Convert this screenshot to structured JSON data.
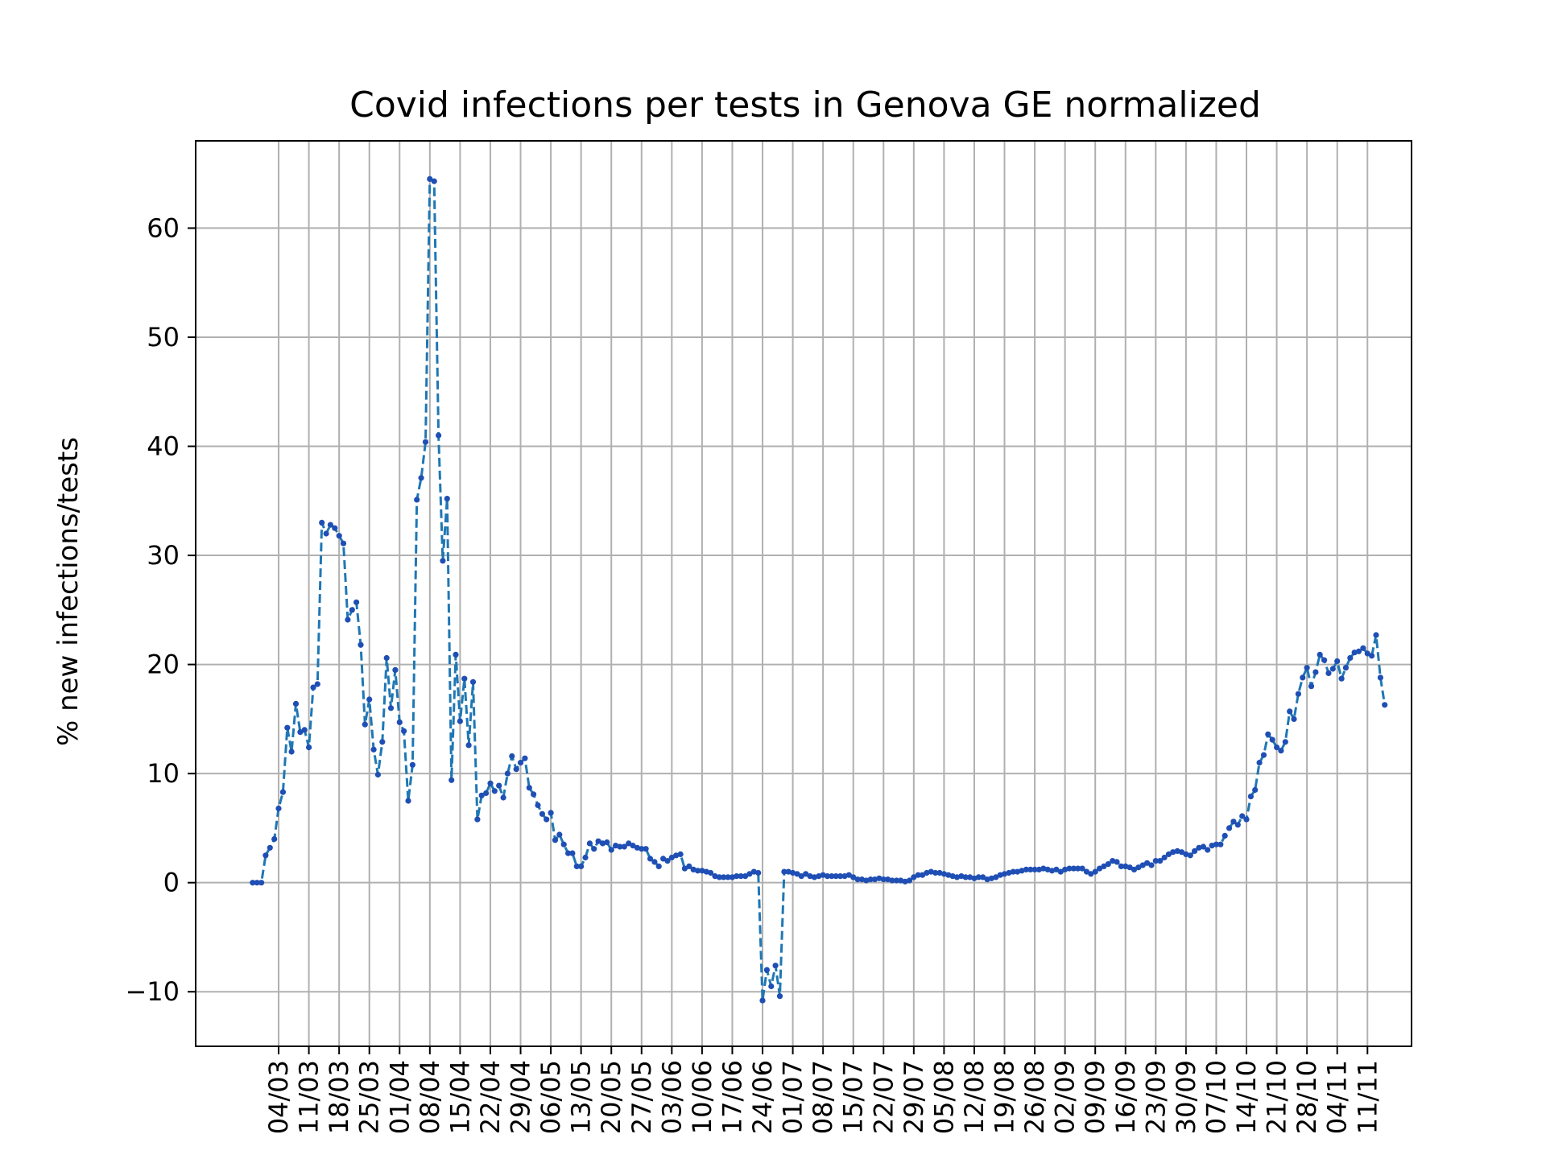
{
  "chart_data": {
    "type": "line",
    "title": "Covid infections per tests in Genova GE normalized",
    "xlabel": "",
    "ylabel": "% new infections/tests",
    "x_tick_labels": [
      "04/03",
      "11/03",
      "18/03",
      "25/03",
      "01/04",
      "08/04",
      "15/04",
      "22/04",
      "29/04",
      "06/05",
      "13/05",
      "20/05",
      "27/05",
      "03/06",
      "10/06",
      "17/06",
      "24/06",
      "01/07",
      "08/07",
      "15/07",
      "22/07",
      "29/07",
      "05/08",
      "12/08",
      "19/08",
      "26/08",
      "02/09",
      "09/09",
      "16/09",
      "23/09",
      "30/09",
      "07/10",
      "14/10",
      "21/10",
      "28/10",
      "04/11",
      "11/11"
    ],
    "y_ticks": [
      -10,
      0,
      10,
      20,
      30,
      40,
      50,
      60
    ],
    "y_tick_labels": [
      "−10",
      "0",
      "10",
      "20",
      "30",
      "40",
      "50",
      "60"
    ],
    "ylim": [
      -15,
      68
    ],
    "xlim_days": [
      -19.2,
      262.2
    ],
    "grid": true,
    "legend": "none",
    "colors": {
      "line": "#1f77b4",
      "marker": "#1f4fb4",
      "grid": "#b0b0b0"
    },
    "series": [
      {
        "line_style": "dashed",
        "marker": "dot",
        "points": [
          [
            -6,
            0.0
          ],
          [
            -5,
            0.0
          ],
          [
            -4,
            0.0
          ],
          [
            -3,
            2.5
          ],
          [
            -2,
            3.2
          ],
          [
            -1,
            4.0
          ],
          [
            0,
            6.8
          ],
          [
            1,
            8.3
          ],
          [
            2,
            14.2
          ],
          [
            3,
            12.0
          ],
          [
            4,
            16.4
          ],
          [
            5,
            13.8
          ],
          [
            6,
            14.0
          ],
          [
            7,
            12.4
          ],
          [
            8,
            17.9
          ],
          [
            9,
            18.2
          ],
          [
            10,
            33.0
          ],
          [
            11,
            32.0
          ],
          [
            12,
            32.8
          ],
          [
            13,
            32.5
          ],
          [
            14,
            31.8
          ],
          [
            15,
            31.1
          ],
          [
            16,
            24.1
          ],
          [
            17,
            25.0
          ],
          [
            18,
            25.7
          ],
          [
            19,
            21.8
          ],
          [
            20,
            14.5
          ],
          [
            21,
            16.8
          ],
          [
            22,
            12.2
          ],
          [
            23,
            9.9
          ],
          [
            24,
            12.9
          ],
          [
            25,
            20.6
          ],
          [
            26,
            16.0
          ],
          [
            27,
            19.5
          ],
          [
            28,
            14.7
          ],
          [
            29,
            13.9
          ],
          [
            30,
            7.5
          ],
          [
            31,
            10.8
          ],
          [
            32,
            35.1
          ],
          [
            33,
            37.1
          ],
          [
            34,
            40.4
          ],
          [
            35,
            64.5
          ],
          [
            36,
            64.3
          ],
          [
            37,
            41.0
          ],
          [
            38,
            29.5
          ],
          [
            39,
            35.2
          ],
          [
            40,
            9.4
          ],
          [
            41,
            20.9
          ],
          [
            42,
            14.8
          ],
          [
            43,
            18.7
          ],
          [
            44,
            12.6
          ],
          [
            45,
            18.4
          ],
          [
            46,
            5.8
          ],
          [
            47,
            8.0
          ],
          [
            48,
            8.2
          ],
          [
            49,
            9.1
          ],
          [
            50,
            8.4
          ],
          [
            51,
            8.9
          ],
          [
            52,
            7.8
          ],
          [
            53,
            10.0
          ],
          [
            54,
            11.6
          ],
          [
            55,
            10.4
          ],
          [
            56,
            11.0
          ],
          [
            57,
            11.4
          ],
          [
            58,
            8.7
          ],
          [
            59,
            8.1
          ],
          [
            60,
            7.1
          ],
          [
            61,
            6.3
          ],
          [
            62,
            5.8
          ],
          [
            63,
            6.4
          ],
          [
            64,
            3.9
          ],
          [
            65,
            4.4
          ],
          [
            66,
            3.5
          ],
          [
            67,
            2.7
          ],
          [
            68,
            2.7
          ],
          [
            69,
            1.5
          ],
          [
            70,
            1.5
          ],
          [
            71,
            2.3
          ],
          [
            72,
            3.6
          ],
          [
            73,
            3.1
          ],
          [
            74,
            3.8
          ],
          [
            75,
            3.6
          ],
          [
            76,
            3.7
          ],
          [
            77,
            3.0
          ],
          [
            78,
            3.4
          ],
          [
            79,
            3.3
          ],
          [
            80,
            3.3
          ],
          [
            81,
            3.6
          ],
          [
            82,
            3.4
          ],
          [
            83,
            3.2
          ],
          [
            84,
            3.1
          ],
          [
            85,
            3.1
          ],
          [
            86,
            2.2
          ],
          [
            87,
            1.9
          ],
          [
            88,
            1.5
          ],
          [
            89,
            2.2
          ],
          [
            90,
            2.0
          ],
          [
            91,
            2.3
          ],
          [
            92,
            2.5
          ],
          [
            93,
            2.6
          ],
          [
            94,
            1.3
          ],
          [
            95,
            1.5
          ],
          [
            96,
            1.2
          ],
          [
            97,
            1.1
          ],
          [
            98,
            1.1
          ],
          [
            99,
            1.0
          ],
          [
            100,
            0.9
          ],
          [
            101,
            0.6
          ],
          [
            102,
            0.5
          ],
          [
            103,
            0.5
          ],
          [
            104,
            0.5
          ],
          [
            105,
            0.5
          ],
          [
            106,
            0.6
          ],
          [
            107,
            0.6
          ],
          [
            108,
            0.6
          ],
          [
            109,
            0.8
          ],
          [
            110,
            1.0
          ],
          [
            111,
            0.9
          ],
          [
            112,
            -10.8
          ],
          [
            113,
            -8.0
          ],
          [
            114,
            -9.5
          ],
          [
            115,
            -7.6
          ],
          [
            116,
            -10.4
          ],
          [
            117,
            1.0
          ],
          [
            118,
            1.0
          ],
          [
            119,
            0.9
          ],
          [
            120,
            0.8
          ],
          [
            121,
            0.6
          ],
          [
            122,
            0.8
          ],
          [
            123,
            0.6
          ],
          [
            124,
            0.5
          ],
          [
            125,
            0.6
          ],
          [
            126,
            0.7
          ],
          [
            127,
            0.6
          ],
          [
            128,
            0.6
          ],
          [
            129,
            0.6
          ],
          [
            130,
            0.6
          ],
          [
            131,
            0.6
          ],
          [
            132,
            0.7
          ],
          [
            133,
            0.5
          ],
          [
            134,
            0.3
          ],
          [
            135,
            0.3
          ],
          [
            136,
            0.2
          ],
          [
            137,
            0.3
          ],
          [
            138,
            0.3
          ],
          [
            139,
            0.4
          ],
          [
            140,
            0.3
          ],
          [
            141,
            0.3
          ],
          [
            142,
            0.2
          ],
          [
            143,
            0.2
          ],
          [
            144,
            0.2
          ],
          [
            145,
            0.1
          ],
          [
            146,
            0.2
          ],
          [
            147,
            0.5
          ],
          [
            148,
            0.7
          ],
          [
            149,
            0.7
          ],
          [
            150,
            0.9
          ],
          [
            151,
            1.0
          ],
          [
            152,
            0.9
          ],
          [
            153,
            0.9
          ],
          [
            154,
            0.8
          ],
          [
            155,
            0.7
          ],
          [
            156,
            0.6
          ],
          [
            157,
            0.5
          ],
          [
            158,
            0.6
          ],
          [
            159,
            0.5
          ],
          [
            160,
            0.5
          ],
          [
            161,
            0.4
          ],
          [
            162,
            0.5
          ],
          [
            163,
            0.5
          ],
          [
            164,
            0.3
          ],
          [
            165,
            0.4
          ],
          [
            166,
            0.5
          ],
          [
            167,
            0.7
          ],
          [
            168,
            0.8
          ],
          [
            169,
            0.9
          ],
          [
            170,
            1.0
          ],
          [
            171,
            1.0
          ],
          [
            172,
            1.1
          ],
          [
            173,
            1.2
          ],
          [
            174,
            1.2
          ],
          [
            175,
            1.2
          ],
          [
            176,
            1.2
          ],
          [
            177,
            1.3
          ],
          [
            178,
            1.2
          ],
          [
            179,
            1.1
          ],
          [
            180,
            1.2
          ],
          [
            181,
            1.0
          ],
          [
            182,
            1.2
          ],
          [
            183,
            1.3
          ],
          [
            184,
            1.3
          ],
          [
            185,
            1.3
          ],
          [
            186,
            1.3
          ],
          [
            187,
            1.0
          ],
          [
            188,
            0.8
          ],
          [
            189,
            1.0
          ],
          [
            190,
            1.3
          ],
          [
            191,
            1.5
          ],
          [
            192,
            1.7
          ],
          [
            193,
            2.0
          ],
          [
            194,
            1.9
          ],
          [
            195,
            1.5
          ],
          [
            196,
            1.5
          ],
          [
            197,
            1.4
          ],
          [
            198,
            1.2
          ],
          [
            199,
            1.4
          ],
          [
            200,
            1.6
          ],
          [
            201,
            1.8
          ],
          [
            202,
            1.6
          ],
          [
            203,
            2.0
          ],
          [
            204,
            2.0
          ],
          [
            205,
            2.3
          ],
          [
            206,
            2.6
          ],
          [
            207,
            2.8
          ],
          [
            208,
            2.9
          ],
          [
            209,
            2.8
          ],
          [
            210,
            2.6
          ],
          [
            211,
            2.5
          ],
          [
            212,
            2.9
          ],
          [
            213,
            3.2
          ],
          [
            214,
            3.3
          ],
          [
            215,
            3.0
          ],
          [
            216,
            3.4
          ],
          [
            217,
            3.5
          ],
          [
            218,
            3.5
          ],
          [
            219,
            4.3
          ],
          [
            220,
            5.0
          ],
          [
            221,
            5.6
          ],
          [
            222,
            5.3
          ],
          [
            223,
            6.1
          ],
          [
            224,
            5.8
          ],
          [
            225,
            7.9
          ],
          [
            226,
            8.5
          ],
          [
            227,
            11.0
          ],
          [
            228,
            11.7
          ],
          [
            229,
            13.6
          ],
          [
            230,
            13.1
          ],
          [
            231,
            12.4
          ],
          [
            232,
            12.1
          ],
          [
            233,
            12.9
          ],
          [
            234,
            15.7
          ],
          [
            235,
            15.0
          ],
          [
            236,
            17.3
          ],
          [
            237,
            18.8
          ],
          [
            238,
            19.7
          ],
          [
            239,
            18.0
          ],
          [
            240,
            19.3
          ],
          [
            241,
            20.9
          ],
          [
            242,
            20.4
          ],
          [
            243,
            19.2
          ],
          [
            244,
            19.6
          ],
          [
            245,
            20.3
          ],
          [
            246,
            18.7
          ],
          [
            247,
            19.7
          ],
          [
            248,
            20.6
          ],
          [
            249,
            21.1
          ],
          [
            250,
            21.2
          ],
          [
            251,
            21.5
          ],
          [
            252,
            21.0
          ],
          [
            253,
            20.8
          ],
          [
            254,
            22.7
          ],
          [
            255,
            18.8
          ],
          [
            256,
            16.3
          ]
        ]
      }
    ]
  }
}
